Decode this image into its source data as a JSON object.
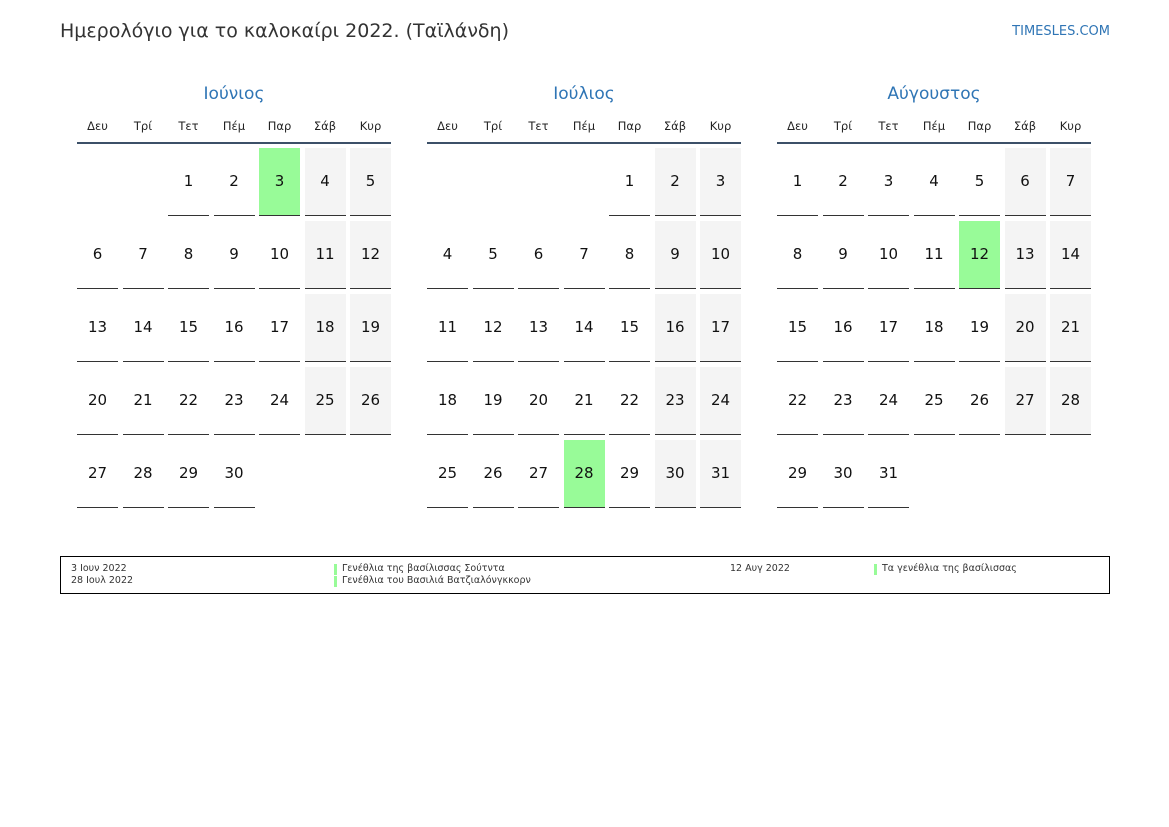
{
  "header": {
    "title": "Ημερολόγιο για το καλοκαίρι 2022. (Ταϊλάνδη)",
    "site": "TIMESLES.COM"
  },
  "weekdays": [
    "Δευ",
    "Τρί",
    "Τετ",
    "Πέμ",
    "Παρ",
    "Σάβ",
    "Κυρ"
  ],
  "months": [
    {
      "name": "Ιούνιος",
      "holidays": [
        3
      ],
      "weeks": [
        [
          null,
          null,
          1,
          2,
          3,
          4,
          5
        ],
        [
          6,
          7,
          8,
          9,
          10,
          11,
          12
        ],
        [
          13,
          14,
          15,
          16,
          17,
          18,
          19
        ],
        [
          20,
          21,
          22,
          23,
          24,
          25,
          26
        ],
        [
          27,
          28,
          29,
          30,
          null,
          null,
          null
        ]
      ]
    },
    {
      "name": "Ιούλιος",
      "holidays": [
        28
      ],
      "weeks": [
        [
          null,
          null,
          null,
          null,
          1,
          2,
          3
        ],
        [
          4,
          5,
          6,
          7,
          8,
          9,
          10
        ],
        [
          11,
          12,
          13,
          14,
          15,
          16,
          17
        ],
        [
          18,
          19,
          20,
          21,
          22,
          23,
          24
        ],
        [
          25,
          26,
          27,
          28,
          29,
          30,
          31
        ]
      ]
    },
    {
      "name": "Αύγουστος",
      "holidays": [
        12
      ],
      "weeks": [
        [
          1,
          2,
          3,
          4,
          5,
          6,
          7
        ],
        [
          8,
          9,
          10,
          11,
          12,
          13,
          14
        ],
        [
          15,
          16,
          17,
          18,
          19,
          20,
          21
        ],
        [
          22,
          23,
          24,
          25,
          26,
          27,
          28
        ],
        [
          29,
          30,
          31,
          null,
          null,
          null,
          null
        ]
      ]
    }
  ],
  "legend": [
    {
      "date": "3 Ιουν 2022",
      "name": "Γενέθλια της βασίλισσας Σούτντα"
    },
    {
      "date": "28 Ιουλ 2022",
      "name": "Γενέθλια του Βασιλιά Βατζιαλόνγκκορν"
    },
    {
      "date": "12 Αυγ 2022",
      "name": "Τα γενέθλια της βασίλισσας"
    }
  ]
}
